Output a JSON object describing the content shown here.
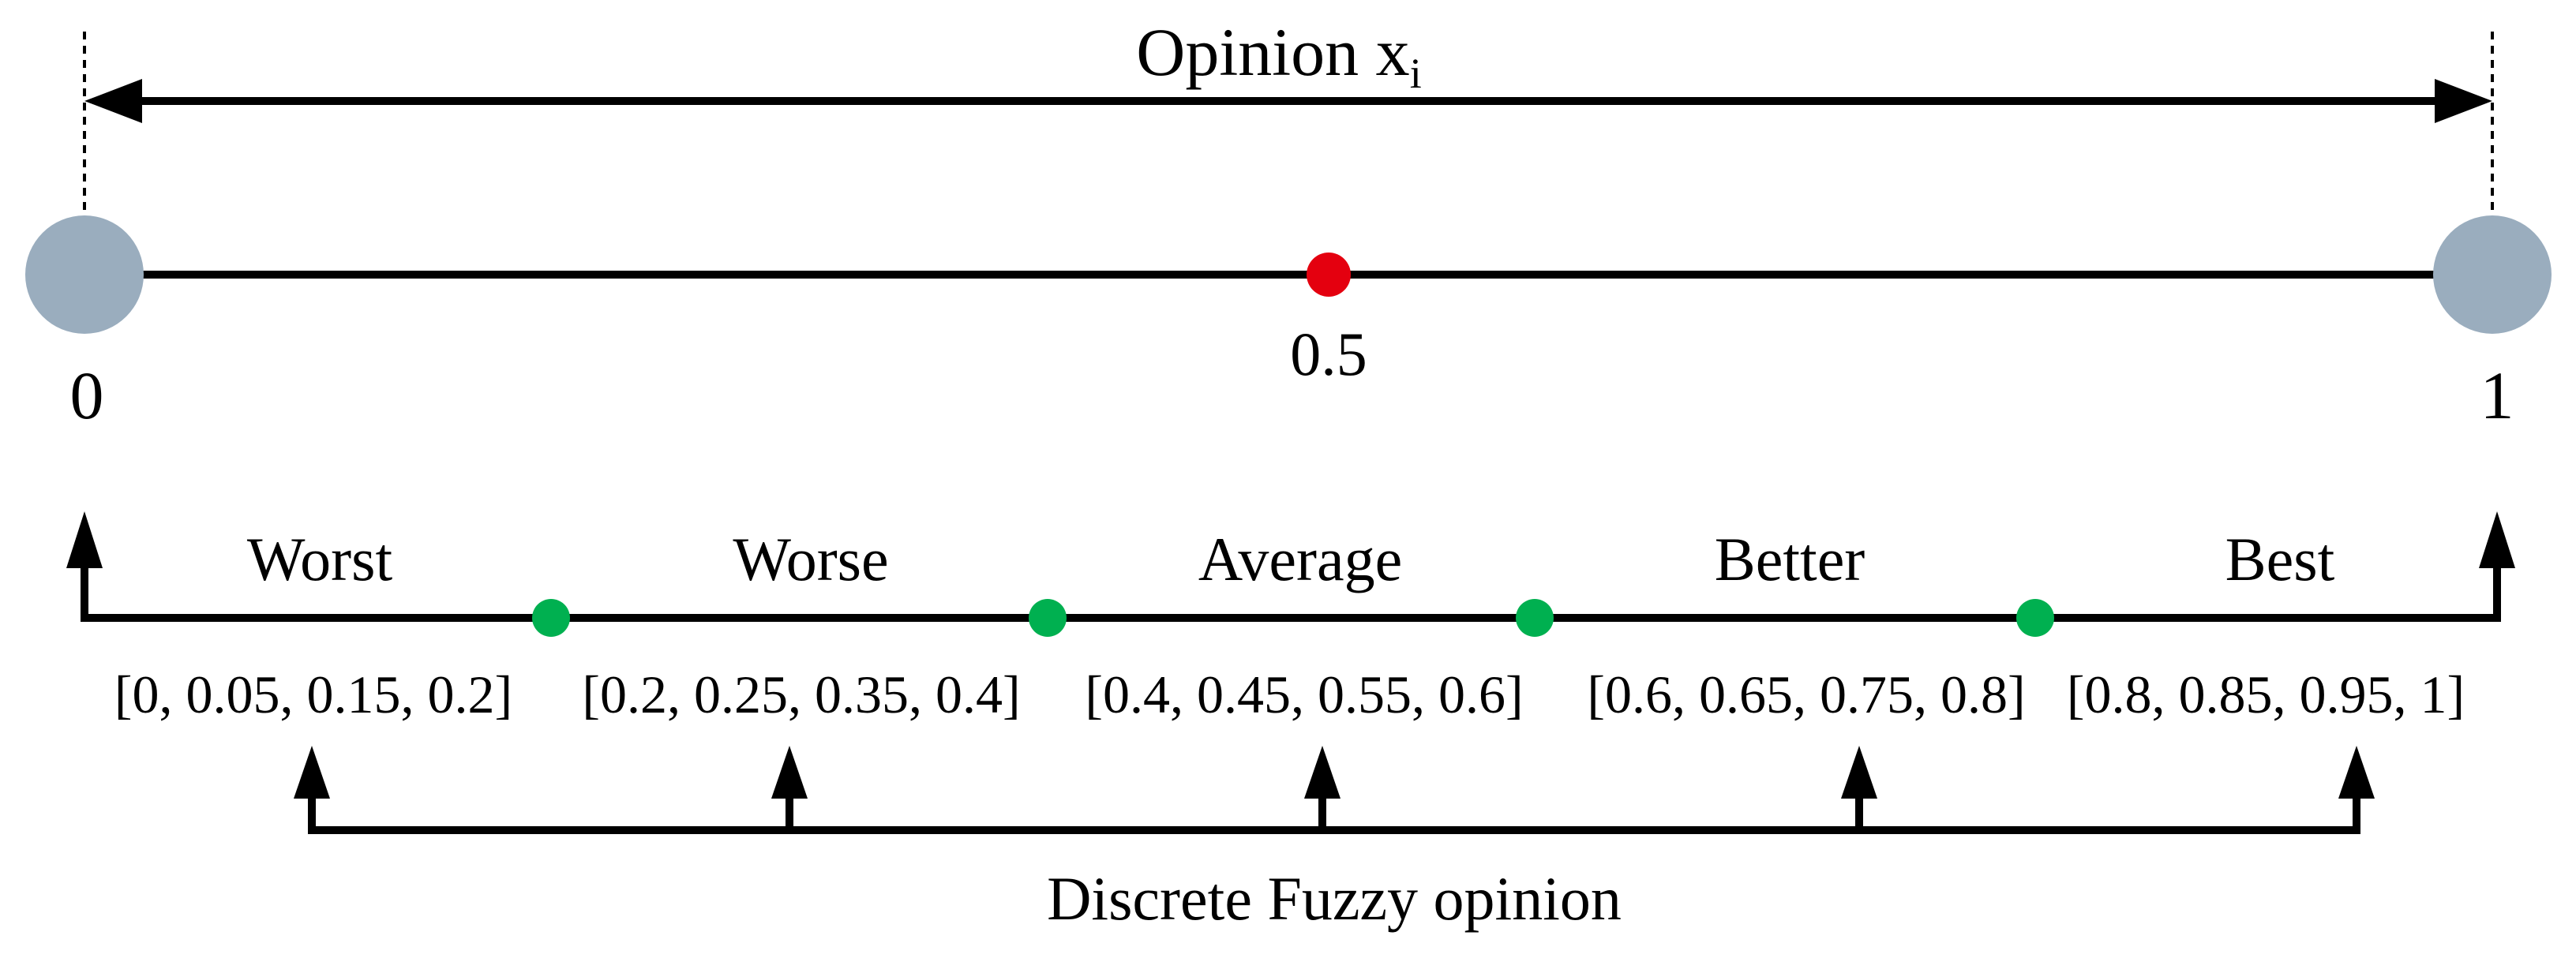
{
  "header": {
    "label": "Opinion x",
    "subscript": "i"
  },
  "scale": {
    "min_label": "0",
    "mid_label": "0.5",
    "max_label": "1",
    "mid_value": 0.5
  },
  "categories": [
    {
      "name": "Worst",
      "interval": "[0, 0.05, 0.15, 0.2]"
    },
    {
      "name": "Worse",
      "interval": "[0.2, 0.25, 0.35, 0.4]"
    },
    {
      "name": "Average",
      "interval": "[0.4, 0.45, 0.55, 0.6]"
    },
    {
      "name": "Better",
      "interval": "[0.6, 0.65, 0.75, 0.8]"
    },
    {
      "name": "Best",
      "interval": "[0.8, 0.85, 0.95, 1]"
    }
  ],
  "footer": {
    "label": "Discrete Fuzzy opinion"
  },
  "colors": {
    "endpoint": "#9aadbe",
    "midpoint": "#e4000f",
    "boundary": "#00b050",
    "line": "#000000"
  }
}
